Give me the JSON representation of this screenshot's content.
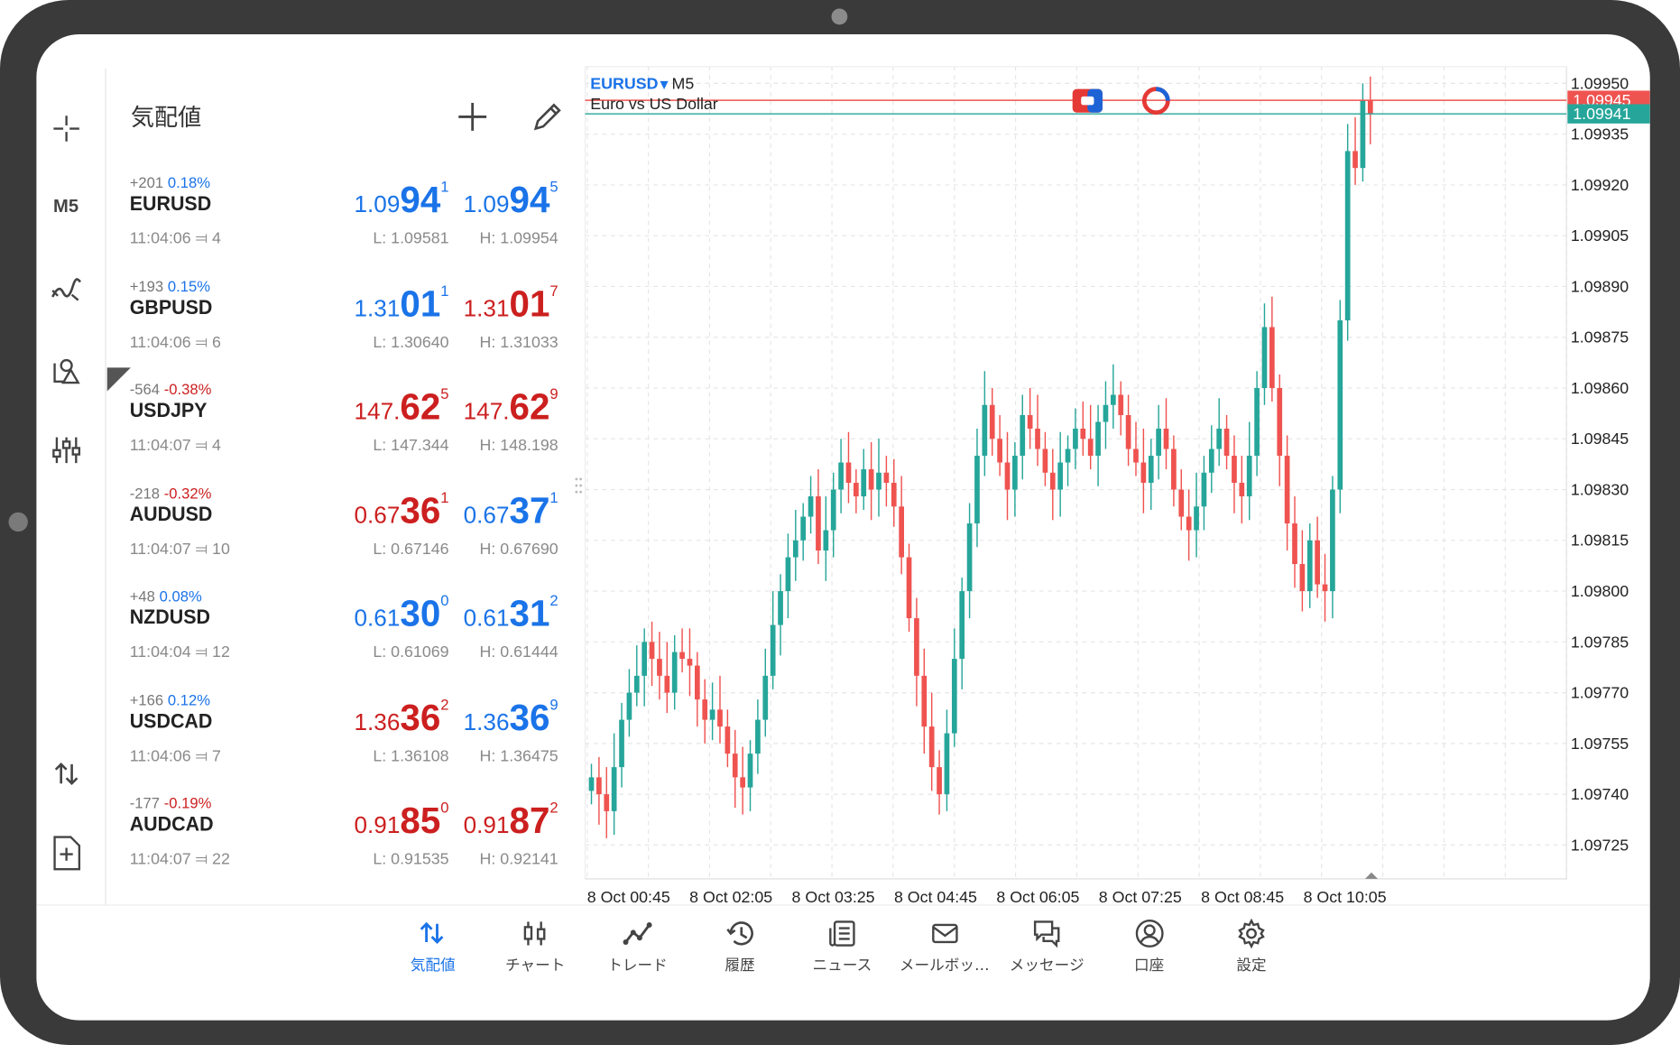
{
  "toolbar": {
    "timeframe": "M5",
    "tools": [
      "crosshair-icon",
      "timeframe",
      "indicators-icon",
      "objects-icon",
      "settings-sliders-icon",
      "trade-arrows-icon",
      "new-order-icon"
    ]
  },
  "quotes_panel": {
    "title": "気配値",
    "items": [
      {
        "change": "+201",
        "pct": "0.18%",
        "dir": "up",
        "symbol": "EURUSD",
        "time": "11:04:06",
        "spread": "4",
        "bid": {
          "a": "1.09",
          "b": "94",
          "c": "1",
          "color": "blue"
        },
        "ask": {
          "a": "1.09",
          "b": "94",
          "c": "5",
          "color": "blue"
        },
        "low": "L: 1.09581",
        "high": "H: 1.09954"
      },
      {
        "change": "+193",
        "pct": "0.15%",
        "dir": "up",
        "symbol": "GBPUSD",
        "time": "11:04:06",
        "spread": "6",
        "bid": {
          "a": "1.31",
          "b": "01",
          "c": "1",
          "color": "blue"
        },
        "ask": {
          "a": "1.31",
          "b": "01",
          "c": "7",
          "color": "red"
        },
        "low": "L: 1.30640",
        "high": "H: 1.31033"
      },
      {
        "change": "-564",
        "pct": "-0.38%",
        "dir": "down",
        "symbol": "USDJPY",
        "time": "11:04:07",
        "spread": "4",
        "bid": {
          "a": "147.",
          "b": "62",
          "c": "5",
          "color": "red"
        },
        "ask": {
          "a": "147.",
          "b": "62",
          "c": "9",
          "color": "red"
        },
        "low": "L: 147.344",
        "high": "H: 148.198"
      },
      {
        "change": "-218",
        "pct": "-0.32%",
        "dir": "down",
        "symbol": "AUDUSD",
        "time": "11:04:07",
        "spread": "10",
        "bid": {
          "a": "0.67",
          "b": "36",
          "c": "1",
          "color": "red"
        },
        "ask": {
          "a": "0.67",
          "b": "37",
          "c": "1",
          "color": "blue"
        },
        "low": "L: 0.67146",
        "high": "H: 0.67690"
      },
      {
        "change": "+48",
        "pct": "0.08%",
        "dir": "up",
        "symbol": "NZDUSD",
        "time": "11:04:04",
        "spread": "12",
        "bid": {
          "a": "0.61",
          "b": "30",
          "c": "0",
          "color": "blue"
        },
        "ask": {
          "a": "0.61",
          "b": "31",
          "c": "2",
          "color": "blue"
        },
        "low": "L: 0.61069",
        "high": "H: 0.61444"
      },
      {
        "change": "+166",
        "pct": "0.12%",
        "dir": "up",
        "symbol": "USDCAD",
        "time": "11:04:06",
        "spread": "7",
        "bid": {
          "a": "1.36",
          "b": "36",
          "c": "2",
          "color": "red"
        },
        "ask": {
          "a": "1.36",
          "b": "36",
          "c": "9",
          "color": "blue"
        },
        "low": "L: 1.36108",
        "high": "H: 1.36475"
      },
      {
        "change": "-177",
        "pct": "-0.19%",
        "dir": "down",
        "symbol": "AUDCAD",
        "time": "11:04:07",
        "spread": "22",
        "bid": {
          "a": "0.91",
          "b": "85",
          "c": "0",
          "color": "red"
        },
        "ask": {
          "a": "0.91",
          "b": "87",
          "c": "2",
          "color": "red"
        },
        "low": "L: 0.91535",
        "high": "H: 0.92141"
      }
    ]
  },
  "chart": {
    "symbol": "EURUSD",
    "timeframe": "M5",
    "description": "Euro vs US Dollar",
    "ask_label": "1.09945",
    "bid_label": "1.09941",
    "price_ticks": [
      "1.09950",
      "1.09935",
      "1.09920",
      "1.09905",
      "1.09890",
      "1.09875",
      "1.09860",
      "1.09845",
      "1.09830",
      "1.09815",
      "1.09800",
      "1.09785",
      "1.09770",
      "1.09755",
      "1.09740",
      "1.09725"
    ],
    "time_ticks": [
      "8 Oct 00:45",
      "8 Oct 02:05",
      "8 Oct 03:25",
      "8 Oct 04:45",
      "8 Oct 06:05",
      "8 Oct 07:25",
      "8 Oct 08:45",
      "8 Oct 10:05"
    ],
    "colors": {
      "up": "#26a69a",
      "down": "#ef5350",
      "ask_line": "#ef5350",
      "bid_line": "#26a69a",
      "grid": "#e6e6e6"
    }
  },
  "chart_data": {
    "type": "candlestick",
    "symbol": "EURUSD",
    "timeframe": "M5",
    "ylim": [
      1.09715,
      1.09955
    ],
    "candles_approx_close": [
      1.09745,
      1.0974,
      1.09735,
      1.09748,
      1.09762,
      1.0977,
      1.09775,
      1.09785,
      1.0978,
      1.09775,
      1.0977,
      1.09782,
      1.0978,
      1.09778,
      1.09768,
      1.09762,
      1.09765,
      1.0976,
      1.09752,
      1.09745,
      1.09742,
      1.09752,
      1.09762,
      1.09775,
      1.0979,
      1.098,
      1.0981,
      1.09815,
      1.09822,
      1.09828,
      1.09812,
      1.09818,
      1.0983,
      1.09838,
      1.09832,
      1.09828,
      1.09836,
      1.0983,
      1.09835,
      1.09832,
      1.09825,
      1.0981,
      1.09792,
      1.09775,
      1.0976,
      1.09748,
      1.0974,
      1.09758,
      1.0978,
      1.098,
      1.0982,
      1.0984,
      1.09855,
      1.09845,
      1.09838,
      1.0983,
      1.0984,
      1.09852,
      1.09848,
      1.09842,
      1.09835,
      1.0983,
      1.09838,
      1.09842,
      1.09848,
      1.09845,
      1.0984,
      1.0985,
      1.09855,
      1.09858,
      1.09852,
      1.09842,
      1.09838,
      1.09832,
      1.0984,
      1.09848,
      1.09842,
      1.0983,
      1.09822,
      1.09818,
      1.09825,
      1.09835,
      1.09842,
      1.09848,
      1.0984,
      1.09832,
      1.09828,
      1.0984,
      1.0986,
      1.09878,
      1.0986,
      1.0984,
      1.0982,
      1.09808,
      1.098,
      1.09815,
      1.09802,
      1.098,
      1.0983,
      1.0988,
      1.0993,
      1.09925,
      1.09945,
      1.09941
    ]
  },
  "bottom_nav": [
    {
      "label": "気配値",
      "icon": "quotes-arrows-icon",
      "active": true
    },
    {
      "label": "チャート",
      "icon": "chart-candles-icon",
      "active": false
    },
    {
      "label": "トレード",
      "icon": "trade-line-icon",
      "active": false
    },
    {
      "label": "履歴",
      "icon": "history-clock-icon",
      "active": false
    },
    {
      "label": "ニュース",
      "icon": "news-icon",
      "active": false
    },
    {
      "label": "メールボッ…",
      "icon": "mail-icon",
      "active": false
    },
    {
      "label": "メッセージ",
      "icon": "chat-icon",
      "active": false
    },
    {
      "label": "口座",
      "icon": "account-icon",
      "active": false
    },
    {
      "label": "設定",
      "icon": "settings-gear-icon",
      "active": false
    }
  ]
}
